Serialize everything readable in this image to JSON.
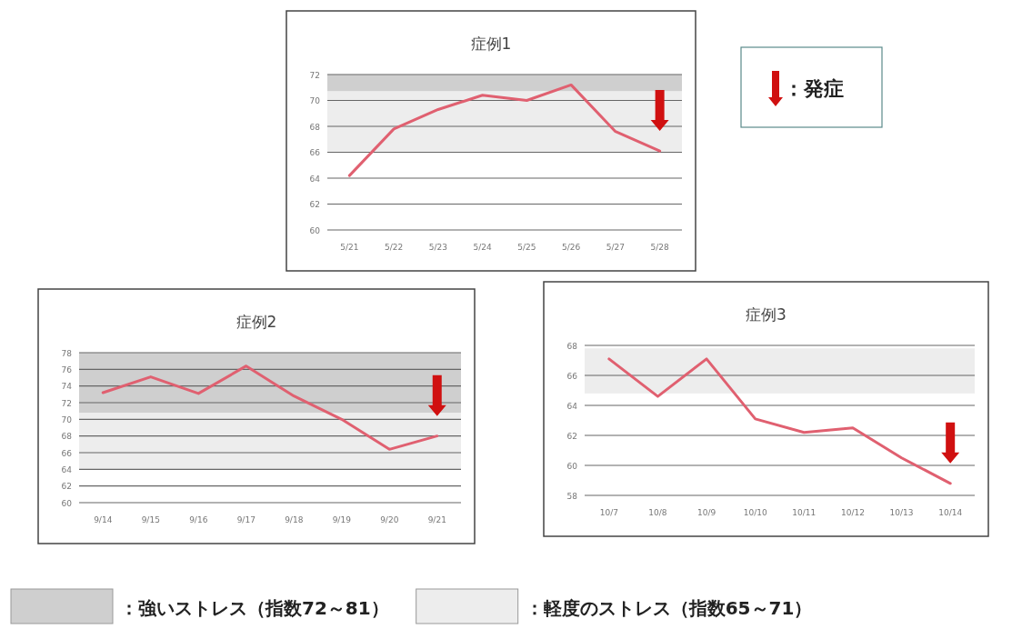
{
  "chart_data": [
    {
      "type": "line",
      "title": "症例1",
      "categories": [
        "5/21",
        "5/22",
        "5/23",
        "5/24",
        "5/25",
        "5/26",
        "5/27",
        "5/28"
      ],
      "series": [
        {
          "color": "#e06070",
          "values": [
            64.2,
            67.8,
            69.3,
            70.4,
            70.0,
            71.2,
            67.6,
            66.1
          ]
        }
      ],
      "ylim": [
        60,
        72
      ],
      "yticks": [
        60,
        62,
        64,
        66,
        68,
        70,
        72
      ],
      "grid": "y",
      "bands": [
        {
          "axis": "y",
          "from": 70.7,
          "to": 72,
          "color": "#cfcfcf"
        },
        {
          "axis": "y",
          "from": 66,
          "to": 70.7,
          "color": "#ededed"
        }
      ],
      "annotations": [
        "：発症"
      ]
    },
    {
      "type": "line",
      "title": "症例2",
      "categories": [
        "9/14",
        "9/15",
        "9/16",
        "9/17",
        "9/18",
        "9/19",
        "9/20",
        "9/21"
      ],
      "series": [
        {
          "color": "#e06070",
          "values": [
            73.2,
            75.1,
            73.1,
            76.4,
            72.8,
            70.0,
            66.4,
            68.0
          ]
        }
      ],
      "ylim": [
        60,
        78
      ],
      "yticks": [
        60,
        62,
        64,
        66,
        68,
        70,
        72,
        74,
        76,
        78
      ],
      "grid": "y",
      "bands": [
        {
          "axis": "y",
          "from": 70.8,
          "to": 78,
          "color": "#cfcfcf"
        },
        {
          "axis": "y",
          "from": 64,
          "to": 70.8,
          "color": "#ededed"
        }
      ]
    },
    {
      "type": "line",
      "title": "症例3",
      "categories": [
        "10/7",
        "10/8",
        "10/9",
        "10/10",
        "10/11",
        "10/12",
        "10/13",
        "10/14"
      ],
      "series": [
        {
          "color": "#e06070",
          "values": [
            67.1,
            64.6,
            67.1,
            63.1,
            62.2,
            62.5,
            60.5,
            58.8
          ]
        }
      ],
      "ylim": [
        58,
        68
      ],
      "yticks": [
        58,
        60,
        62,
        64,
        66,
        68
      ],
      "grid": "y",
      "bands": [
        {
          "axis": "y",
          "from": 64.8,
          "to": 67.8,
          "color": "#ededed"
        }
      ]
    },
    {
      "type": "other",
      "annotations": [
        "：強いストレス（指数72～81）",
        "：軽度のストレス（指数65～71）"
      ]
    }
  ]
}
